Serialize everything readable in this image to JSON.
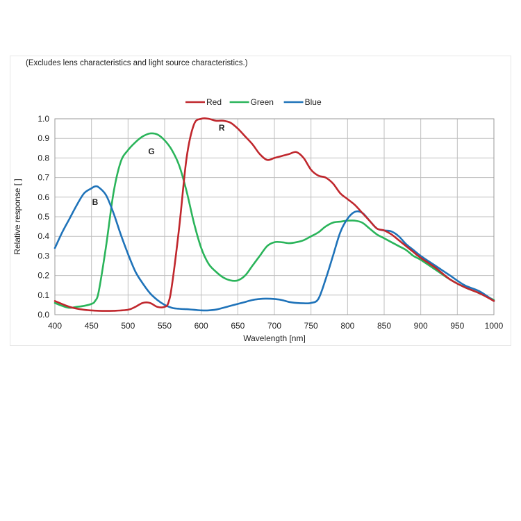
{
  "note": "(Excludes lens characteristics and light source characteristics.)",
  "chart_data": {
    "type": "line",
    "title": "",
    "xlabel": "Wavelength [nm]",
    "ylabel": "Relative response [ ]",
    "xlim": [
      400,
      1000
    ],
    "ylim": [
      0,
      1.0
    ],
    "xticks": [
      400,
      450,
      500,
      550,
      600,
      650,
      700,
      750,
      800,
      850,
      900,
      950,
      1000
    ],
    "yticks": [
      0.0,
      0.1,
      0.2,
      0.3,
      0.4,
      0.5,
      0.6,
      0.7,
      0.8,
      0.9,
      1.0
    ],
    "ytick_labels": [
      "0.0",
      "0.1",
      "0.2",
      "0.3",
      "0.4",
      "0.5",
      "0.6",
      "0.7",
      "0.8",
      "0.9",
      "1.0"
    ],
    "grid": true,
    "legend_position": "top-center",
    "series": [
      {
        "name": "Red",
        "color": "#c0272d",
        "curve_label": "R",
        "label_at": [
          628,
          0.94
        ],
        "points": [
          [
            400,
            0.07
          ],
          [
            420,
            0.04
          ],
          [
            440,
            0.025
          ],
          [
            460,
            0.02
          ],
          [
            480,
            0.02
          ],
          [
            500,
            0.025
          ],
          [
            510,
            0.04
          ],
          [
            520,
            0.06
          ],
          [
            530,
            0.06
          ],
          [
            540,
            0.04
          ],
          [
            550,
            0.04
          ],
          [
            555,
            0.06
          ],
          [
            560,
            0.15
          ],
          [
            570,
            0.45
          ],
          [
            580,
            0.8
          ],
          [
            590,
            0.97
          ],
          [
            600,
            1.0
          ],
          [
            610,
            1.0
          ],
          [
            620,
            0.99
          ],
          [
            630,
            0.99
          ],
          [
            640,
            0.98
          ],
          [
            650,
            0.95
          ],
          [
            660,
            0.91
          ],
          [
            670,
            0.87
          ],
          [
            680,
            0.82
          ],
          [
            690,
            0.79
          ],
          [
            700,
            0.8
          ],
          [
            710,
            0.81
          ],
          [
            720,
            0.82
          ],
          [
            730,
            0.83
          ],
          [
            740,
            0.8
          ],
          [
            750,
            0.74
          ],
          [
            760,
            0.71
          ],
          [
            770,
            0.7
          ],
          [
            780,
            0.67
          ],
          [
            790,
            0.62
          ],
          [
            800,
            0.59
          ],
          [
            810,
            0.56
          ],
          [
            820,
            0.52
          ],
          [
            830,
            0.48
          ],
          [
            840,
            0.44
          ],
          [
            850,
            0.43
          ],
          [
            860,
            0.41
          ],
          [
            870,
            0.38
          ],
          [
            880,
            0.35
          ],
          [
            890,
            0.32
          ],
          [
            900,
            0.29
          ],
          [
            920,
            0.24
          ],
          [
            940,
            0.18
          ],
          [
            960,
            0.14
          ],
          [
            980,
            0.11
          ],
          [
            1000,
            0.07
          ]
        ]
      },
      {
        "name": "Green",
        "color": "#2ab45a",
        "curve_label": "G",
        "label_at": [
          532,
          0.82
        ],
        "points": [
          [
            400,
            0.06
          ],
          [
            410,
            0.045
          ],
          [
            420,
            0.035
          ],
          [
            430,
            0.04
          ],
          [
            440,
            0.045
          ],
          [
            450,
            0.055
          ],
          [
            455,
            0.07
          ],
          [
            460,
            0.12
          ],
          [
            470,
            0.35
          ],
          [
            480,
            0.62
          ],
          [
            490,
            0.78
          ],
          [
            500,
            0.84
          ],
          [
            510,
            0.88
          ],
          [
            520,
            0.91
          ],
          [
            530,
            0.925
          ],
          [
            540,
            0.92
          ],
          [
            550,
            0.89
          ],
          [
            560,
            0.84
          ],
          [
            570,
            0.76
          ],
          [
            580,
            0.63
          ],
          [
            590,
            0.47
          ],
          [
            600,
            0.34
          ],
          [
            610,
            0.26
          ],
          [
            620,
            0.22
          ],
          [
            630,
            0.19
          ],
          [
            640,
            0.175
          ],
          [
            650,
            0.175
          ],
          [
            660,
            0.2
          ],
          [
            670,
            0.25
          ],
          [
            680,
            0.3
          ],
          [
            690,
            0.35
          ],
          [
            700,
            0.37
          ],
          [
            710,
            0.37
          ],
          [
            720,
            0.365
          ],
          [
            730,
            0.37
          ],
          [
            740,
            0.38
          ],
          [
            750,
            0.4
          ],
          [
            760,
            0.42
          ],
          [
            770,
            0.45
          ],
          [
            780,
            0.47
          ],
          [
            790,
            0.475
          ],
          [
            800,
            0.48
          ],
          [
            810,
            0.48
          ],
          [
            820,
            0.47
          ],
          [
            830,
            0.44
          ],
          [
            840,
            0.41
          ],
          [
            850,
            0.39
          ],
          [
            860,
            0.37
          ],
          [
            870,
            0.35
          ],
          [
            880,
            0.33
          ],
          [
            890,
            0.3
          ],
          [
            900,
            0.28
          ],
          [
            920,
            0.23
          ],
          [
            940,
            0.18
          ],
          [
            960,
            0.14
          ],
          [
            980,
            0.11
          ],
          [
            1000,
            0.075
          ]
        ]
      },
      {
        "name": "Blue",
        "color": "#1f73b9",
        "curve_label": "B",
        "label_at": [
          455,
          0.56
        ],
        "points": [
          [
            400,
            0.34
          ],
          [
            410,
            0.42
          ],
          [
            420,
            0.49
          ],
          [
            430,
            0.56
          ],
          [
            440,
            0.62
          ],
          [
            450,
            0.645
          ],
          [
            455,
            0.655
          ],
          [
            460,
            0.65
          ],
          [
            470,
            0.61
          ],
          [
            480,
            0.52
          ],
          [
            490,
            0.41
          ],
          [
            500,
            0.31
          ],
          [
            510,
            0.22
          ],
          [
            520,
            0.16
          ],
          [
            530,
            0.11
          ],
          [
            540,
            0.075
          ],
          [
            550,
            0.05
          ],
          [
            560,
            0.035
          ],
          [
            570,
            0.03
          ],
          [
            580,
            0.028
          ],
          [
            590,
            0.025
          ],
          [
            600,
            0.022
          ],
          [
            610,
            0.022
          ],
          [
            620,
            0.026
          ],
          [
            630,
            0.035
          ],
          [
            640,
            0.045
          ],
          [
            650,
            0.055
          ],
          [
            660,
            0.065
          ],
          [
            670,
            0.075
          ],
          [
            680,
            0.08
          ],
          [
            690,
            0.082
          ],
          [
            700,
            0.08
          ],
          [
            710,
            0.075
          ],
          [
            720,
            0.065
          ],
          [
            730,
            0.06
          ],
          [
            740,
            0.058
          ],
          [
            750,
            0.06
          ],
          [
            760,
            0.08
          ],
          [
            770,
            0.18
          ],
          [
            780,
            0.3
          ],
          [
            790,
            0.42
          ],
          [
            800,
            0.49
          ],
          [
            810,
            0.525
          ],
          [
            820,
            0.52
          ],
          [
            830,
            0.48
          ],
          [
            840,
            0.44
          ],
          [
            850,
            0.43
          ],
          [
            860,
            0.425
          ],
          [
            870,
            0.4
          ],
          [
            880,
            0.36
          ],
          [
            890,
            0.33
          ],
          [
            900,
            0.3
          ],
          [
            920,
            0.25
          ],
          [
            940,
            0.2
          ],
          [
            960,
            0.15
          ],
          [
            980,
            0.12
          ],
          [
            1000,
            0.07
          ]
        ]
      }
    ]
  }
}
